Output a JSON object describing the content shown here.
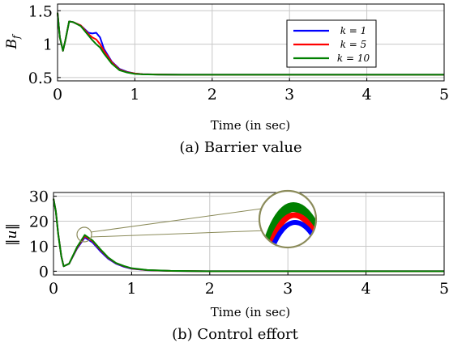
{
  "chart_data": [
    {
      "type": "line",
      "caption": "(a) Barrier value",
      "xlabel": "Time (in sec)",
      "ylabel": "B_f",
      "xlim": [
        0,
        5
      ],
      "ylim": [
        0.45,
        1.6
      ],
      "xticks": [
        "0",
        "1",
        "2",
        "3",
        "4",
        "5"
      ],
      "yticks": [
        "0.5",
        "1",
        "1.5"
      ],
      "grid": true,
      "legend_position": "top-right",
      "series": [
        {
          "name": "k = 1",
          "color": "#0000ff",
          "x": [
            0,
            0.03,
            0.07,
            0.1,
            0.15,
            0.2,
            0.3,
            0.4,
            0.45,
            0.5,
            0.55,
            0.6,
            0.7,
            0.8,
            0.9,
            1.0,
            1.1,
            1.3,
            1.6,
            2,
            3,
            4,
            5
          ],
          "y": [
            1.47,
            1.1,
            0.9,
            1.05,
            1.34,
            1.33,
            1.28,
            1.17,
            1.16,
            1.17,
            1.1,
            0.93,
            0.74,
            0.63,
            0.585,
            0.56,
            0.55,
            0.545,
            0.542,
            0.542,
            0.542,
            0.542,
            0.542
          ]
        },
        {
          "name": "k = 5",
          "color": "#ff0000",
          "x": [
            0,
            0.03,
            0.07,
            0.1,
            0.15,
            0.2,
            0.3,
            0.4,
            0.45,
            0.5,
            0.55,
            0.6,
            0.7,
            0.8,
            0.9,
            1.0,
            1.1,
            1.3,
            1.6,
            2,
            3,
            4,
            5
          ],
          "y": [
            1.47,
            1.1,
            0.9,
            1.05,
            1.34,
            1.33,
            1.28,
            1.15,
            1.1,
            1.07,
            1.0,
            0.9,
            0.73,
            0.62,
            0.58,
            0.56,
            0.55,
            0.545,
            0.542,
            0.542,
            0.542,
            0.542,
            0.542
          ]
        },
        {
          "name": "k = 10",
          "color": "#008000",
          "x": [
            0,
            0.03,
            0.07,
            0.1,
            0.15,
            0.2,
            0.3,
            0.4,
            0.45,
            0.5,
            0.55,
            0.6,
            0.7,
            0.8,
            0.9,
            1.0,
            1.1,
            1.3,
            1.6,
            2,
            3,
            4,
            5
          ],
          "y": [
            1.47,
            1.1,
            0.9,
            1.05,
            1.34,
            1.33,
            1.27,
            1.13,
            1.06,
            1.0,
            0.95,
            0.86,
            0.71,
            0.61,
            0.575,
            0.555,
            0.548,
            0.544,
            0.542,
            0.542,
            0.542,
            0.542,
            0.542
          ]
        }
      ]
    },
    {
      "type": "line",
      "caption": "(b) Control effort",
      "xlabel": "Time (in sec)",
      "ylabel": "‖u‖",
      "xlim": [
        0,
        5
      ],
      "ylim": [
        -1.5,
        31.5
      ],
      "xticks": [
        "0",
        "1",
        "2",
        "3",
        "4",
        "5"
      ],
      "yticks": [
        "0",
        "10",
        "20",
        "30"
      ],
      "grid": true,
      "inset": "zoom of peak near t = 0.4",
      "series": [
        {
          "color": "#0000ff",
          "x": [
            0,
            0.03,
            0.06,
            0.1,
            0.13,
            0.2,
            0.3,
            0.4,
            0.5,
            0.6,
            0.7,
            0.8,
            0.9,
            1.0,
            1.2,
            1.5,
            2,
            3,
            4,
            5
          ],
          "y": [
            29,
            24,
            15,
            6,
            2,
            3,
            9,
            13.5,
            11.5,
            8,
            5,
            3,
            1.8,
            1.0,
            0.4,
            0.1,
            0,
            0,
            0,
            0
          ]
        },
        {
          "color": "#ff0000",
          "x": [
            0,
            0.03,
            0.06,
            0.1,
            0.13,
            0.2,
            0.3,
            0.4,
            0.5,
            0.6,
            0.7,
            0.8,
            0.9,
            1.0,
            1.2,
            1.5,
            2,
            3,
            4,
            5
          ],
          "y": [
            29,
            24,
            15,
            6,
            2,
            3,
            9.3,
            14,
            12,
            8.5,
            5.3,
            3.2,
            2.0,
            1.1,
            0.45,
            0.12,
            0,
            0,
            0,
            0
          ]
        },
        {
          "color": "#008000",
          "x": [
            0,
            0.03,
            0.06,
            0.1,
            0.13,
            0.2,
            0.3,
            0.4,
            0.5,
            0.6,
            0.7,
            0.8,
            0.9,
            1.0,
            1.2,
            1.5,
            2,
            3,
            4,
            5
          ],
          "y": [
            29,
            24,
            15,
            6,
            2,
            3,
            9.6,
            14.5,
            12.3,
            8.8,
            5.5,
            3.3,
            2.1,
            1.2,
            0.5,
            0.14,
            0,
            0,
            0,
            0
          ]
        }
      ]
    }
  ]
}
